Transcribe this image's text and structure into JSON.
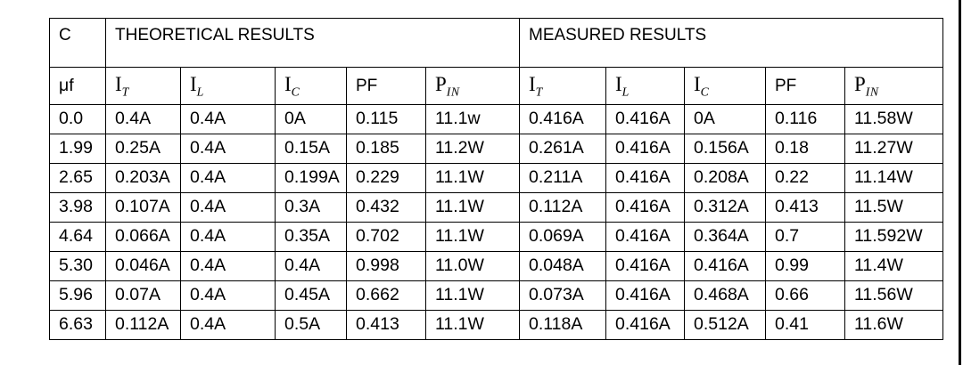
{
  "page": {
    "background": "#ffffff",
    "border_color": "#000000",
    "text_color": "#000000"
  },
  "table": {
    "corner": {
      "top": "C",
      "bottom": "μf"
    },
    "group_headers": [
      {
        "label": "THEORETICAL RESULTS"
      },
      {
        "label": "MEASURED RESULTS"
      }
    ],
    "column_headers": [
      {
        "base": "I",
        "sub": "T",
        "style": "serif"
      },
      {
        "base": "I",
        "sub": "L",
        "style": "serif"
      },
      {
        "base": "I",
        "sub": "C",
        "style": "serif"
      },
      {
        "base": "PF",
        "sub": "",
        "style": "sans"
      },
      {
        "base": "P",
        "sub": "IN",
        "style": "serif"
      }
    ],
    "rows": [
      {
        "c": "0.0",
        "theoretical": [
          "0.4A",
          "0.4A",
          "0A",
          "0.115",
          "11.1w"
        ],
        "measured": [
          "0.416A",
          "0.416A",
          "0A",
          "0.116",
          "11.58W"
        ]
      },
      {
        "c": "1.99",
        "theoretical": [
          "0.25A",
          "0.4A",
          "0.15A",
          "0.185",
          "11.2W"
        ],
        "measured": [
          "0.261A",
          "0.416A",
          "0.156A",
          "0.18",
          "11.27W"
        ]
      },
      {
        "c": "2.65",
        "theoretical": [
          "0.203A",
          "0.4A",
          "0.199A",
          "0.229",
          "11.1W"
        ],
        "measured": [
          "0.211A",
          "0.416A",
          "0.208A",
          "0.22",
          "11.14W"
        ]
      },
      {
        "c": "3.98",
        "theoretical": [
          "0.107A",
          "0.4A",
          "0.3A",
          "0.432",
          "11.1W"
        ],
        "measured": [
          "0.112A",
          "0.416A",
          "0.312A",
          "0.413",
          "11.5W"
        ]
      },
      {
        "c": "4.64",
        "theoretical": [
          "0.066A",
          "0.4A",
          "0.35A",
          "0.702",
          "11.1W"
        ],
        "measured": [
          "0.069A",
          "0.416A",
          "0.364A",
          "0.7",
          "11.592W"
        ]
      },
      {
        "c": "5.30",
        "theoretical": [
          "0.046A",
          "0.4A",
          "0.4A",
          "0.998",
          "11.0W"
        ],
        "measured": [
          "0.048A",
          "0.416A",
          "0.416A",
          "0.99",
          "11.4W"
        ]
      },
      {
        "c": "5.96",
        "theoretical": [
          "0.07A",
          "0.4A",
          "0.45A",
          "0.662",
          "11.1W"
        ],
        "measured": [
          "0.073A",
          "0.416A",
          "0.468A",
          "0.66",
          "11.56W"
        ]
      },
      {
        "c": "6.63",
        "theoretical": [
          "0.112A",
          "0.4A",
          "0.5A",
          "0.413",
          "11.1W"
        ],
        "measured": [
          "0.118A",
          "0.416A",
          "0.512A",
          "0.41",
          "11.6W"
        ]
      }
    ]
  }
}
